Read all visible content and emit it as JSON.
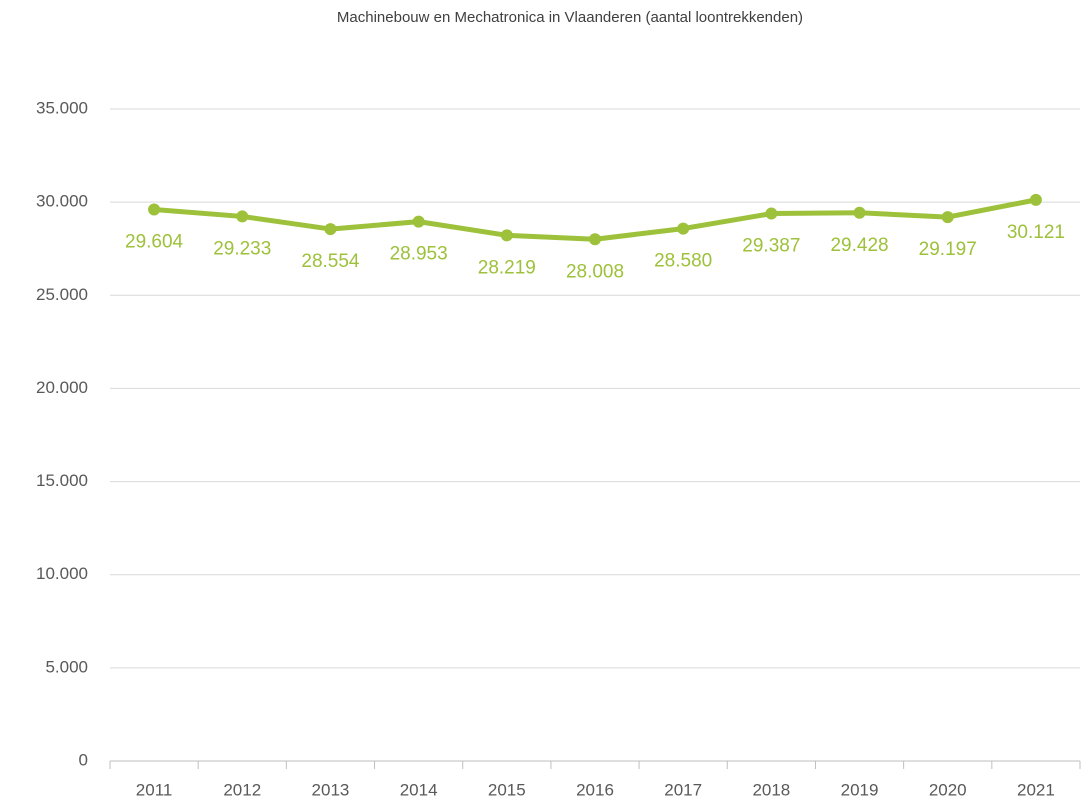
{
  "chart_data": {
    "type": "line",
    "title": "Machinebouw en Mechatronica in Vlaanderen (aantal loontrekkenden)",
    "categories": [
      "2011",
      "2012",
      "2013",
      "2014",
      "2015",
      "2016",
      "2017",
      "2018",
      "2019",
      "2020",
      "2021"
    ],
    "series": [
      {
        "name": "Machinebouw en Mechatronica",
        "color": "#9dc13a",
        "values": [
          29604,
          29233,
          28554,
          28953,
          28219,
          28008,
          28580,
          29387,
          29428,
          29197,
          30121
        ],
        "value_labels": [
          "29.604",
          "29.233",
          "28.554",
          "28.953",
          "28.219",
          "28.008",
          "28.580",
          "29.387",
          "29.428",
          "29.197",
          "30.121"
        ]
      }
    ],
    "ylim": [
      0,
      35000
    ],
    "yticks": [
      0,
      {
        "value": 5000,
        "label": "5.000"
      },
      {
        "value": 10000,
        "label": "10.000"
      },
      {
        "value": 15000,
        "label": "15.000"
      },
      {
        "value": 20000,
        "label": "20.000"
      },
      {
        "value": 25000,
        "label": "25.000"
      },
      {
        "value": 30000,
        "label": "30.000"
      },
      {
        "value": 35000,
        "label": "35.000"
      }
    ],
    "grid": true
  }
}
